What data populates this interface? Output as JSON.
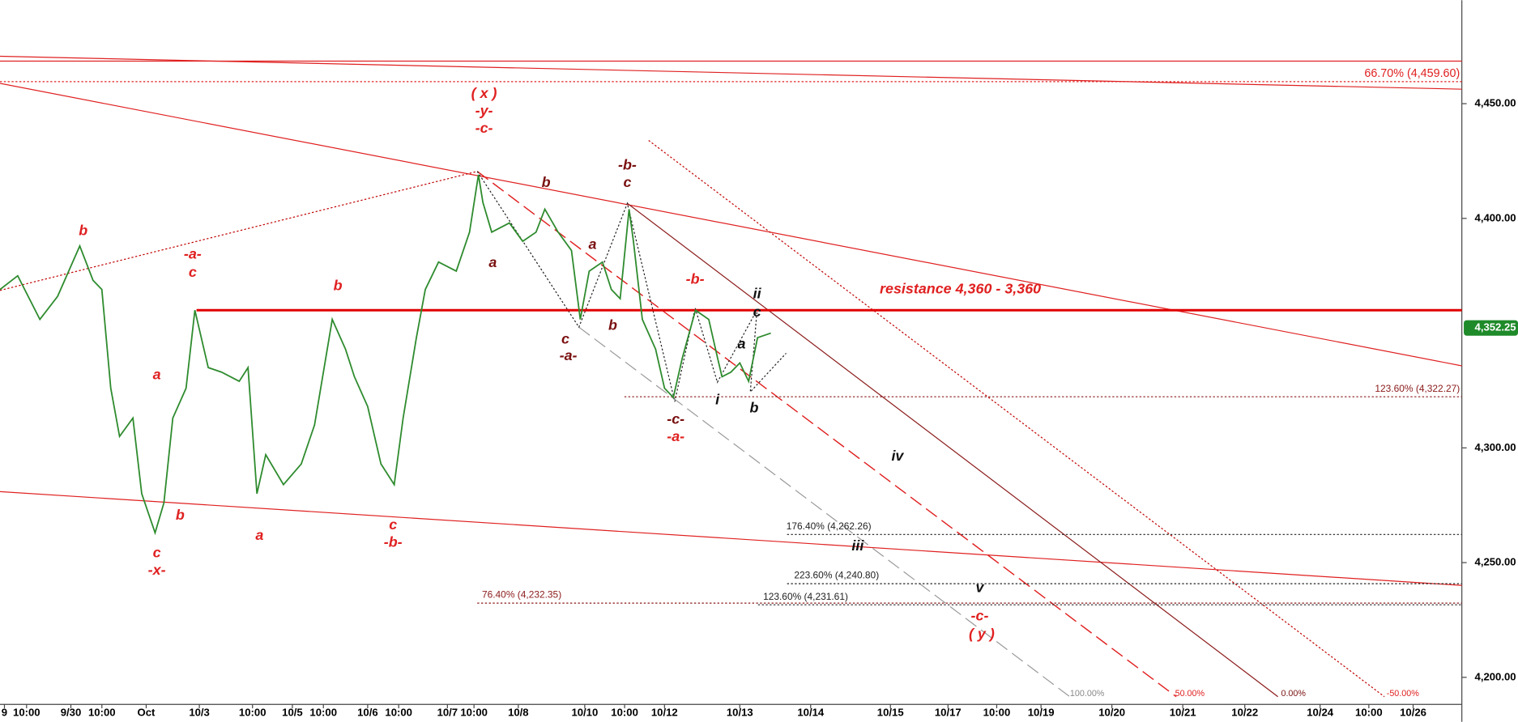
{
  "chart_data": {
    "type": "line",
    "color": "#2e8b2e",
    "x": [
      0,
      4,
      9,
      13,
      18,
      21,
      23,
      25,
      27,
      30,
      32,
      35,
      37,
      39,
      42,
      44,
      47,
      50,
      54,
      56,
      58,
      60,
      64,
      68,
      71,
      75,
      78,
      80,
      83,
      86,
      89,
      91,
      94,
      96,
      99,
      103,
      106,
      108,
      109,
      111,
      115,
      118,
      121,
      123,
      126,
      129,
      131,
      133,
      136,
      138,
      140,
      142,
      143,
      145,
      148,
      150,
      152,
      154,
      157,
      160,
      162,
      163,
      165,
      167,
      169,
      171,
      174
    ],
    "values": [
      4369,
      4375,
      4356,
      4366,
      4388,
      4373,
      4369,
      4326,
      4305,
      4313,
      4280,
      4263,
      4276,
      4313,
      4326,
      4360,
      4335,
      4333,
      4329,
      4335,
      4280,
      4297,
      4284,
      4293,
      4310,
      4356,
      4343,
      4331,
      4318,
      4293,
      4284,
      4313,
      4348,
      4369,
      4381,
      4377,
      4394,
      4419,
      4407,
      4394,
      4398,
      4390,
      4394,
      4404,
      4394,
      4386,
      4356,
      4377,
      4381,
      4369,
      4365,
      4404,
      4390,
      4356,
      4343,
      4326,
      4322,
      4339,
      4360,
      4356,
      4339,
      4331,
      4333,
      4337,
      4329,
      4348,
      4350
    ],
    "xlim": [
      0,
      330
    ],
    "ylim": [
      4188.2,
      4495.1
    ],
    "xticks": [
      {
        "value": 1,
        "label": "9"
      },
      {
        "value": 6,
        "label": "10:00"
      },
      {
        "value": 16,
        "label": "9/30"
      },
      {
        "value": 23,
        "label": "10:00"
      },
      {
        "value": 33,
        "label": "Oct"
      },
      {
        "value": 45,
        "label": "10/3"
      },
      {
        "value": 57,
        "label": "10:00"
      },
      {
        "value": 66,
        "label": "10/5"
      },
      {
        "value": 73,
        "label": "10:00"
      },
      {
        "value": 83,
        "label": "10/6"
      },
      {
        "value": 90,
        "label": "10:00"
      },
      {
        "value": 101,
        "label": "10/7"
      },
      {
        "value": 107,
        "label": "10:00"
      },
      {
        "value": 117,
        "label": "10/8"
      },
      {
        "value": 132,
        "label": "10/10"
      },
      {
        "value": 141,
        "label": "10:00"
      },
      {
        "value": 150,
        "label": "10/12"
      },
      {
        "value": 167,
        "label": "10/13"
      },
      {
        "value": 183,
        "label": "10/14"
      },
      {
        "value": 201,
        "label": "10/15"
      },
      {
        "value": 214,
        "label": "10/17"
      },
      {
        "value": 225,
        "label": "10:00"
      },
      {
        "value": 235,
        "label": "10/19"
      },
      {
        "value": 251,
        "label": "10/20"
      },
      {
        "value": 267,
        "label": "10/21"
      },
      {
        "value": 281,
        "label": "10/22"
      },
      {
        "value": 298,
        "label": "10/24"
      },
      {
        "value": 309,
        "label": "10:00"
      },
      {
        "value": 319,
        "label": "10/26"
      }
    ],
    "yticks": [
      {
        "value": 4200,
        "label": "4,200.00"
      },
      {
        "value": 4250,
        "label": "4,250.00"
      },
      {
        "value": 4300,
        "label": "4,300.00"
      },
      {
        "value": 4400,
        "label": "4,400.00"
      },
      {
        "value": 4450,
        "label": "4,450.00"
      }
    ],
    "last_price": {
      "value": 4352.25,
      "label": "4,352.25"
    },
    "resistance": {
      "value": 4360,
      "label": "resistance 4,360 - 3,360"
    },
    "levels": [
      {
        "value": 4459.6,
        "label": "66.70% (4,459.60)"
      },
      {
        "value": 4322.27,
        "label": "123.60% (4,322.27)"
      },
      {
        "value": 4262.26,
        "label": "176.40% (4,262.26)"
      },
      {
        "value": 4240.8,
        "label": "223.60% (4,240.80)"
      },
      {
        "value": 4231.61,
        "label": "123.60% (4,231.61)"
      },
      {
        "value": 4232.35,
        "label": "76.40% (4,232.35)"
      }
    ],
    "annotations": [
      "( x )",
      "-y-",
      "-c-",
      "b",
      "-a-",
      "c",
      "b",
      "a",
      "b",
      "c",
      "-x-",
      "a",
      "c",
      "-b-",
      "b",
      "a",
      "-b-",
      "c",
      "a",
      "b",
      "c",
      "-a-",
      "-b-",
      "-c-",
      "-a-",
      "ii",
      "c",
      "a",
      "i",
      "b",
      "iv",
      "iii",
      "v",
      "-c-",
      "( y )",
      "100.00%",
      "50.00%",
      "0.00%",
      "-50.00%"
    ]
  }
}
